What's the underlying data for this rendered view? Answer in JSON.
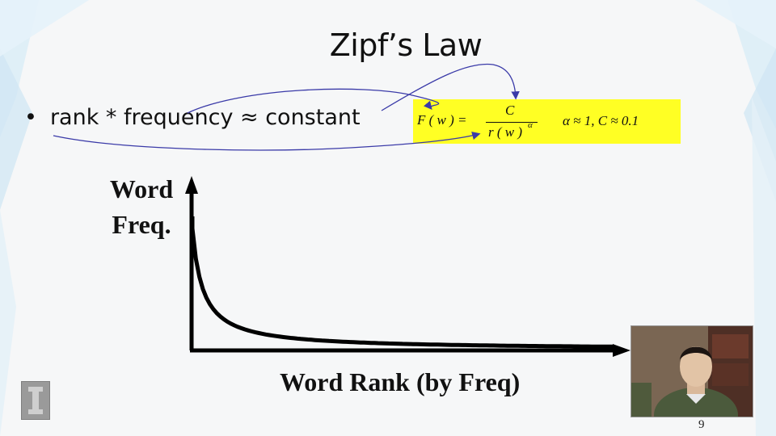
{
  "slide": {
    "title": "Zipf’s Law",
    "bullet": "rank * frequency ≈ constant",
    "bullet_marker": "•",
    "formula": {
      "lhs": "F ( w ) =",
      "numerator": "C",
      "denominator": "r ( w )",
      "exponent": "α",
      "params": "α ≈ 1, C ≈ 0.1",
      "highlight_color": "#ffff24"
    },
    "chart_y_label_line1": "Word",
    "chart_y_label_line2": "Freq.",
    "chart_x_label": "Word Rank (by Freq)",
    "page_number": "9"
  },
  "pip": {
    "icon": "presenter-video-thumbnail"
  },
  "logo": {
    "icon": "university-logo-icon"
  },
  "annotations": {
    "color": "#3a3aa8"
  }
}
